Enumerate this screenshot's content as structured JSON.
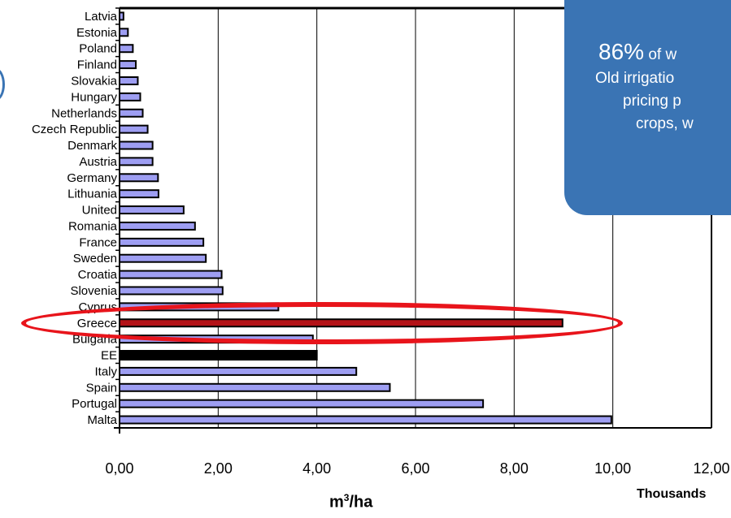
{
  "chart_data": {
    "type": "bar",
    "orientation": "horizontal",
    "categories": [
      "Latvia",
      "Estonia",
      "Poland",
      "Finland",
      "Slovakia",
      "Hungary",
      "Netherlands",
      "Czech Republic",
      "Denmark",
      "Austria",
      "Germany",
      "Lithuania",
      "United",
      "Romania",
      "France",
      "Sweden",
      "Croatia",
      "Slovenia",
      "Cyprus",
      "Greece",
      "Bulgaria",
      "EE",
      "Italy",
      "Spain",
      "Portugal",
      "Malta"
    ],
    "values": [
      0.08,
      0.17,
      0.27,
      0.33,
      0.37,
      0.42,
      0.47,
      0.57,
      0.67,
      0.67,
      0.78,
      0.79,
      1.3,
      1.53,
      1.7,
      1.75,
      2.07,
      2.09,
      3.22,
      8.98,
      3.92,
      4.0,
      4.8,
      5.48,
      7.37,
      9.97
    ],
    "highlight_category": "Greece",
    "xlabel": "m³/ha",
    "xlabel_main": "m",
    "xlabel_sup": "3",
    "xlabel_tail": "/ha",
    "x_unit_note": "Thousands",
    "xlim": [
      0,
      12
    ],
    "x_ticks": [
      "0,00",
      "2,00",
      "4,00",
      "6,00",
      "8,00",
      "10,00",
      "12,00"
    ],
    "grid": "vertical",
    "colors": {
      "bar": "#9e9ef2",
      "bar_edge": "#000000",
      "highlight_bar": "#b31217",
      "ee_bar": "#000000",
      "ellipse": "#e8141b",
      "callout_bg": "#3a74b4"
    }
  },
  "callout": {
    "pct": "86%",
    "line1_rest": " of w",
    "line2": "Old irrigatio",
    "line3": "pricing p",
    "line4": "crops, w"
  }
}
